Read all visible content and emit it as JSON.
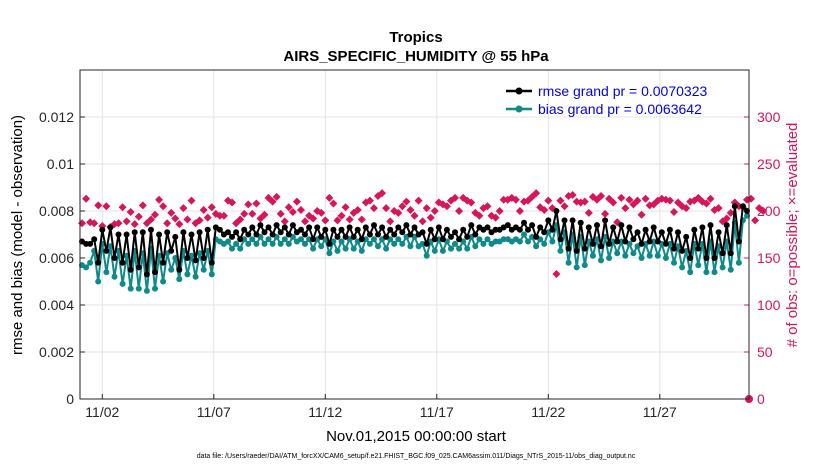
{
  "chart_data": {
    "type": "line",
    "title": "Tropics",
    "subtitle": "AIRS_SPECIFIC_HUMIDITY @ 55 hPa",
    "xlabel": "Nov.01,2015 00:00:00 start",
    "ylabel": "rmse and bias (model - observation)",
    "y2label": "# of obs: o=possible; ×=evaluated",
    "footer": "data file: /Users/raeder/DAI/ATM_forcXX/CAM6_setup/f.e21.FHIST_BGC.f09_025.CAM6assim.011/Diags_NTrS_2015-11/obs_diag_output.nc",
    "x_range_days": [
      0.5,
      30.5
    ],
    "ylim": [
      0,
      0.014
    ],
    "y2lim": [
      0,
      350
    ],
    "x_ticks": [
      {
        "day": 1.5,
        "label": "11/02"
      },
      {
        "day": 6.5,
        "label": "11/07"
      },
      {
        "day": 11.5,
        "label": "11/12"
      },
      {
        "day": 16.5,
        "label": "11/17"
      },
      {
        "day": 21.5,
        "label": "11/22"
      },
      {
        "day": 26.5,
        "label": "11/27"
      }
    ],
    "y_ticks": [
      "0",
      "0.002",
      "0.004",
      "0.006",
      "0.008",
      "0.01",
      "0.012"
    ],
    "y_tick_values": [
      0,
      0.002,
      0.004,
      0.006,
      0.008,
      0.01,
      0.012
    ],
    "y2_ticks": [
      "0",
      "50",
      "100",
      "150",
      "200",
      "250",
      "300"
    ],
    "y2_tick_values": [
      0,
      50,
      100,
      150,
      200,
      250,
      300
    ],
    "colors": {
      "rmse": "#000000",
      "bias": "#0e8a8a",
      "obs": "#d6155a",
      "legend_text": "#0000ee"
    },
    "legend": [
      {
        "name": "rmse grand pr = 0.0070323",
        "series": "rmse"
      },
      {
        "name": "bias grand pr = 0.0063642",
        "series": "bias"
      }
    ],
    "series": [
      {
        "name": "rmse",
        "values": [
          0.0067,
          0.0066,
          0.0066,
          0.0068,
          0.0058,
          0.0072,
          0.0063,
          0.0073,
          0.006,
          0.007,
          0.0058,
          0.007,
          0.0055,
          0.0071,
          0.0056,
          0.0071,
          0.0053,
          0.0072,
          0.0054,
          0.007,
          0.0058,
          0.0071,
          0.0063,
          0.0069,
          0.0055,
          0.0071,
          0.006,
          0.007,
          0.0059,
          0.0071,
          0.006,
          0.0072,
          0.0058,
          0.0073,
          0.0072,
          0.007,
          0.0071,
          0.0069,
          0.0071,
          0.0068,
          0.0072,
          0.007,
          0.0073,
          0.007,
          0.0074,
          0.0071,
          0.0073,
          0.007,
          0.0074,
          0.0071,
          0.0073,
          0.007,
          0.0074,
          0.0071,
          0.0072,
          0.007,
          0.0073,
          0.0068,
          0.0073,
          0.0069,
          0.0072,
          0.0066,
          0.0072,
          0.0069,
          0.0072,
          0.0069,
          0.0073,
          0.0069,
          0.0072,
          0.0068,
          0.0073,
          0.007,
          0.0074,
          0.007,
          0.0073,
          0.0069,
          0.0072,
          0.007,
          0.0073,
          0.0071,
          0.0074,
          0.007,
          0.0073,
          0.007,
          0.0071,
          0.0066,
          0.0072,
          0.0068,
          0.0073,
          0.0068,
          0.0072,
          0.0069,
          0.0071,
          0.0068,
          0.0072,
          0.0069,
          0.0074,
          0.007,
          0.0073,
          0.0072,
          0.0073,
          0.0071,
          0.0072,
          0.0072,
          0.0073,
          0.0074,
          0.0072,
          0.0073,
          0.0072,
          0.0075,
          0.0072,
          0.0074,
          0.0069,
          0.0073,
          0.0071,
          0.0076,
          0.0072,
          0.008,
          0.0068,
          0.0076,
          0.0064,
          0.0076,
          0.0063,
          0.0075,
          0.0064,
          0.0073,
          0.0066,
          0.0074,
          0.0065,
          0.0076,
          0.0066,
          0.0073,
          0.0067,
          0.0074,
          0.0067,
          0.0073,
          0.0068,
          0.0071,
          0.0066,
          0.0072,
          0.0067,
          0.0073,
          0.0067,
          0.0071,
          0.0066,
          0.0072,
          0.0064,
          0.0071,
          0.0063,
          0.0069,
          0.006,
          0.0072,
          0.0064,
          0.0073,
          0.006,
          0.0074,
          0.006,
          0.0071,
          0.0062,
          0.0074,
          0.0062,
          0.0082,
          0.0067,
          0.0082,
          0.008
        ]
      },
      {
        "name": "bias",
        "values": [
          0.0057,
          0.0056,
          0.0058,
          0.0063,
          0.005,
          0.0066,
          0.0054,
          0.0065,
          0.0052,
          0.0063,
          0.0049,
          0.0061,
          0.0047,
          0.0063,
          0.0047,
          0.0062,
          0.0046,
          0.0064,
          0.0047,
          0.0061,
          0.005,
          0.0062,
          0.0055,
          0.006,
          0.0051,
          0.0063,
          0.0053,
          0.0061,
          0.0052,
          0.0062,
          0.0055,
          0.0063,
          0.0053,
          0.0068,
          0.0067,
          0.0066,
          0.0067,
          0.0064,
          0.0066,
          0.0064,
          0.0068,
          0.0066,
          0.0068,
          0.0066,
          0.0069,
          0.0066,
          0.0068,
          0.0066,
          0.0069,
          0.0066,
          0.0068,
          0.0066,
          0.0069,
          0.0067,
          0.0068,
          0.0066,
          0.0068,
          0.0064,
          0.0068,
          0.0065,
          0.0068,
          0.0062,
          0.0067,
          0.0063,
          0.0067,
          0.0064,
          0.0068,
          0.0064,
          0.0067,
          0.0063,
          0.0068,
          0.0066,
          0.0068,
          0.0065,
          0.0068,
          0.0064,
          0.0068,
          0.0066,
          0.0068,
          0.0066,
          0.0069,
          0.0065,
          0.0069,
          0.0065,
          0.0066,
          0.0061,
          0.0067,
          0.0063,
          0.0068,
          0.0063,
          0.0067,
          0.0064,
          0.0066,
          0.0064,
          0.0067,
          0.0064,
          0.0069,
          0.0065,
          0.0068,
          0.0066,
          0.0068,
          0.0066,
          0.0067,
          0.0067,
          0.0068,
          0.0068,
          0.0067,
          0.0068,
          0.0067,
          0.007,
          0.0067,
          0.0069,
          0.0065,
          0.0068,
          0.0066,
          0.0071,
          0.0067,
          0.0074,
          0.0063,
          0.0071,
          0.0058,
          0.007,
          0.0056,
          0.0069,
          0.0057,
          0.0067,
          0.0061,
          0.0068,
          0.0059,
          0.0069,
          0.006,
          0.0067,
          0.0062,
          0.0067,
          0.0061,
          0.0066,
          0.0062,
          0.0065,
          0.006,
          0.0066,
          0.0061,
          0.0067,
          0.0061,
          0.0066,
          0.006,
          0.0066,
          0.0058,
          0.0065,
          0.0056,
          0.0063,
          0.0054,
          0.0066,
          0.0057,
          0.0066,
          0.0054,
          0.0067,
          0.0054,
          0.0065,
          0.0056,
          0.0067,
          0.0055,
          0.0075,
          0.0058,
          0.0076,
          0.0078
        ]
      },
      {
        "name": "obs_evaluated",
        "values": [
          187,
          213,
          188,
          187,
          206,
          184,
          205,
          183,
          186,
          187,
          204,
          189,
          199,
          186,
          194,
          206,
          187,
          191,
          196,
          212,
          205,
          187,
          198,
          192,
          186,
          203,
          191,
          211,
          187,
          190,
          201,
          193,
          204,
          197,
          195,
          195,
          211,
          209,
          187,
          191,
          197,
          207,
          197,
          208,
          192,
          196,
          214,
          210,
          215,
          197,
          189,
          204,
          199,
          210,
          201,
          189,
          195,
          192,
          200,
          198,
          190,
          214,
          208,
          190,
          195,
          204,
          191,
          198,
          201,
          191,
          209,
          211,
          203,
          216,
          219,
          203,
          189,
          200,
          198,
          205,
          210,
          201,
          195,
          211,
          189,
          203,
          193,
          200,
          209,
          207,
          205,
          211,
          214,
          200,
          214,
          211,
          209,
          198,
          195,
          203,
          205,
          195,
          193,
          200,
          212,
          212,
          214,
          212,
          200,
          210,
          211,
          215,
          219,
          204,
          201,
          211,
          203,
          133,
          211,
          205,
          216,
          217,
          210,
          209,
          210,
          198,
          215,
          212,
          216,
          197,
          213,
          209,
          188,
          214,
          203,
          212,
          207,
          211,
          196,
          213,
          206,
          207,
          211,
          213,
          212,
          211,
          199,
          209,
          205,
          203,
          210,
          211,
          214,
          210,
          208,
          213,
          201,
          203,
          189,
          192,
          198,
          209,
          205,
          204,
          212,
          213,
          190,
          203,
          200
        ]
      }
    ]
  }
}
